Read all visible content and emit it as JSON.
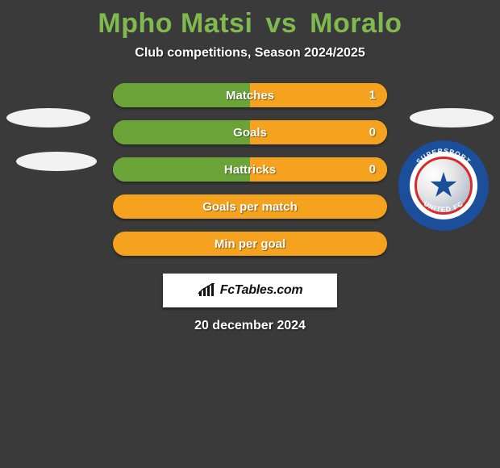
{
  "title": {
    "player1": "Mpho Matsi",
    "vs": "vs",
    "player2": "Moralo",
    "p1_color": "#7fb94f",
    "vs_color": "#7fb94f",
    "p2_color": "#7fb94f",
    "fontsize": 34
  },
  "subtitle": "Club competitions, Season 2024/2025",
  "stats": {
    "bar_color": "#f5a21e",
    "halfcolor_left": "#6aa338",
    "halfcolor_right": "#f5a21e",
    "rows": [
      {
        "label": "Matches",
        "left": "",
        "right": "1",
        "left_pct": 50,
        "right_pct": 50,
        "show_split": true
      },
      {
        "label": "Goals",
        "left": "",
        "right": "0",
        "left_pct": 50,
        "right_pct": 50,
        "show_split": true
      },
      {
        "label": "Hattricks",
        "left": "",
        "right": "0",
        "left_pct": 50,
        "right_pct": 50,
        "show_split": true
      },
      {
        "label": "Goals per match",
        "left": "",
        "right": "",
        "left_pct": 0,
        "right_pct": 0,
        "show_split": false
      },
      {
        "label": "Min per goal",
        "left": "",
        "right": "",
        "left_pct": 0,
        "right_pct": 0,
        "show_split": false
      }
    ]
  },
  "badge_text": "FcTables.com",
  "date_text": "20 december 2024",
  "club_badge": {
    "outer_ring_color": "#1b4e9b",
    "inner_border_color": "#d72a2a",
    "star_color": "#1b4e9b",
    "top_text": "SUPERSPORT",
    "bottom_text": "UNITED FC",
    "ring_text_color": "#ffffff"
  },
  "colors": {
    "background": "#3a3a3a",
    "text": "#ffffff"
  }
}
